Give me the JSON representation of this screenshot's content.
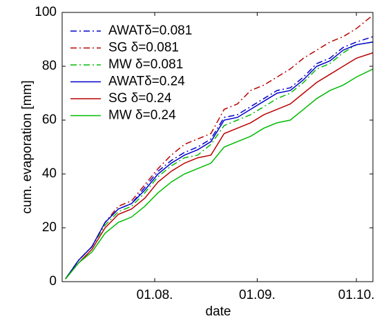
{
  "chart_data": {
    "type": "line",
    "x_label": "date",
    "y_label": "cum. evaporation [mm]",
    "x": [
      186,
      190,
      194,
      198,
      202,
      206,
      210,
      214,
      218,
      222,
      226,
      230,
      234,
      238,
      242,
      246,
      250,
      254,
      258,
      262,
      266,
      270,
      274,
      279
    ],
    "series": [
      {
        "name": "AWATδ=0.081",
        "color": "#0000cc",
        "dash": "dashdot",
        "values": [
          1,
          8,
          13,
          22,
          27,
          29,
          35,
          41,
          45,
          48,
          50,
          53,
          61,
          62,
          65,
          68,
          71,
          72,
          76,
          81,
          83,
          87,
          89,
          91
        ]
      },
      {
        "name": "SG δ=0.081",
        "color": "#bb0000",
        "dash": "dashdot",
        "values": [
          1,
          8,
          13,
          22,
          28,
          30,
          36,
          42,
          47,
          51,
          53,
          55,
          64,
          66,
          71,
          73,
          76,
          79,
          83,
          86,
          89,
          91,
          94,
          99
        ]
      },
      {
        "name": "MW δ=0.081",
        "color": "#00bb00",
        "dash": "dashdot",
        "values": [
          1,
          8,
          13,
          21,
          26,
          28,
          33,
          39,
          43,
          46,
          47,
          51,
          58,
          60,
          62,
          65,
          68,
          70,
          74,
          79,
          81,
          85,
          88,
          89
        ]
      },
      {
        "name": "AWATδ=0.24",
        "color": "#0000cc",
        "dash": "solid",
        "values": [
          1,
          8,
          13,
          22,
          27,
          29,
          34,
          40,
          44,
          47,
          49,
          52,
          60,
          61,
          64,
          67,
          70,
          71,
          75,
          80,
          82,
          86,
          88,
          89
        ]
      },
      {
        "name": "SG δ=0.24",
        "color": "#bb0000",
        "dash": "solid",
        "values": [
          1,
          7,
          12,
          20,
          25,
          27,
          31,
          37,
          41,
          44,
          46,
          47,
          55,
          57,
          59,
          62,
          64,
          66,
          70,
          74,
          77,
          80,
          83,
          85
        ]
      },
      {
        "name": "MW δ=0.24",
        "color": "#00bb00",
        "dash": "solid",
        "values": [
          1,
          7,
          11,
          18,
          22,
          24,
          28,
          33,
          37,
          40,
          42,
          44,
          50,
          52,
          54,
          57,
          59,
          60,
          64,
          68,
          71,
          73,
          76,
          79
        ]
      }
    ],
    "xlim": [
      185,
      279
    ],
    "xticks": [
      {
        "value": 213,
        "label": "01.08."
      },
      {
        "value": 244,
        "label": "01.09."
      },
      {
        "value": 274,
        "label": "01.10."
      }
    ],
    "ylim": [
      0,
      100
    ],
    "yticks": [
      0,
      20,
      40,
      60,
      80,
      100
    ],
    "grid": false,
    "legend": "top-left"
  }
}
